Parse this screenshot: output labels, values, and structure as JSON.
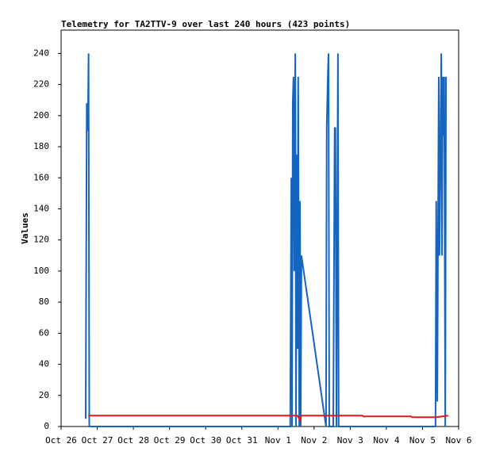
{
  "chart_data": {
    "type": "line",
    "title": "Telemetry for TA2TTV-9 over last 240 hours (423 points)",
    "y_label": "Values",
    "xlim": [
      0,
      11
    ],
    "xticks": [
      {
        "value": 0,
        "label": "Oct 26"
      },
      {
        "value": 1,
        "label": "Oct 27"
      },
      {
        "value": 2,
        "label": "Oct 28"
      },
      {
        "value": 3,
        "label": "Oct 29"
      },
      {
        "value": 4,
        "label": "Oct 30"
      },
      {
        "value": 5,
        "label": "Oct 31"
      },
      {
        "value": 6,
        "label": "Nov 1"
      },
      {
        "value": 7,
        "label": "Nov 2"
      },
      {
        "value": 8,
        "label": "Nov 3"
      },
      {
        "value": 9,
        "label": "Nov 4"
      },
      {
        "value": 10,
        "label": "Nov 5"
      },
      {
        "value": 11,
        "label": "Nov 6"
      }
    ],
    "ylim": [
      0,
      255
    ],
    "yticks": [
      0,
      20,
      40,
      60,
      80,
      100,
      120,
      140,
      160,
      180,
      200,
      220,
      240
    ],
    "series": [
      {
        "color": "#1565c0",
        "x": [
          0.68,
          0.71,
          0.74,
          0.76,
          0.78,
          6.34,
          6.37,
          6.39,
          6.41,
          6.43,
          6.45,
          6.48,
          6.5,
          6.52,
          6.54,
          6.56,
          6.59,
          6.61,
          6.63,
          6.65,
          7.33,
          7.35,
          7.38,
          7.4,
          7.42,
          7.53,
          7.55,
          7.57,
          7.59,
          7.62,
          7.66,
          7.68,
          10.36,
          10.38,
          10.41,
          10.43,
          10.45,
          10.47,
          10.52,
          10.54,
          10.56,
          10.58,
          10.6,
          10.63,
          10.65
        ],
        "values": [
          5,
          208,
          190,
          240,
          0,
          0,
          160,
          0,
          208,
          225,
          100,
          240,
          0,
          175,
          50,
          225,
          0,
          145,
          0,
          110,
          0,
          192,
          225,
          240,
          0,
          0,
          97,
          192,
          192,
          0,
          240,
          0,
          0,
          145,
          16,
          128,
          225,
          110,
          240,
          110,
          225,
          187,
          225,
          0,
          225
        ]
      },
      {
        "color": "#e41a1c",
        "x": [
          0.75,
          6.54,
          6.61,
          6.65,
          8.34,
          8.36,
          9.68,
          9.71,
          10.38,
          10.71
        ],
        "values": [
          7,
          7,
          4,
          7,
          7,
          6.5,
          6.5,
          6,
          6,
          7
        ]
      }
    ]
  }
}
